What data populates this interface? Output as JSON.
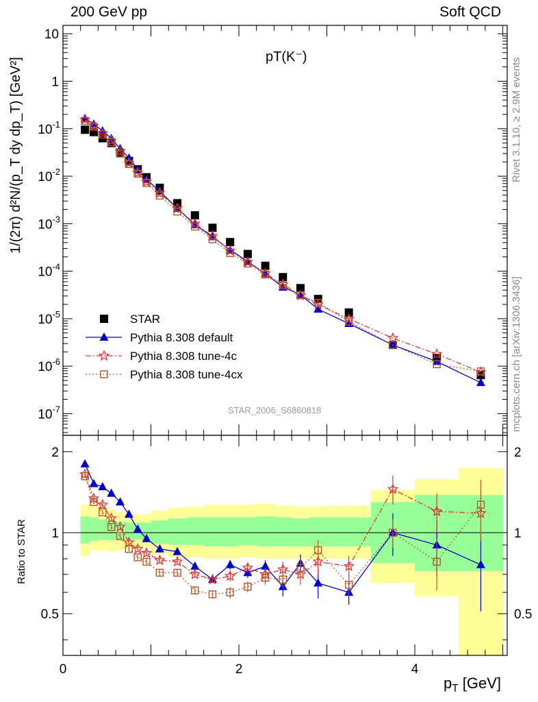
{
  "header": {
    "left": "200 GeV pp",
    "right": "Soft QCD",
    "plot_title": "pT(K⁻)",
    "watermark": "STAR_2006_S6860818"
  },
  "side_text": {
    "rivet": "Rivet 3.1.10, ≥ 2.9M events",
    "source": "mcplots.cern.ch [arXiv:1306.3436]"
  },
  "axes": {
    "upper_ylabel": "1/(2π) d²N/(p_T dy dp_T) [GeV²]",
    "lower_ylabel": "Ratio to STAR",
    "xlabel_main": "p",
    "xlabel_sub": "T",
    "xlabel_unit": "[GeV]"
  },
  "legend": [
    {
      "label": "STAR",
      "style": "data",
      "color": "#000000"
    },
    {
      "label": "Pythia 8.308 default",
      "style": "triangle",
      "color": "#0000cc"
    },
    {
      "label": "Pythia 8.308 tune-4c",
      "style": "star",
      "color": "#e03333"
    },
    {
      "label": "Pythia 8.308 tune-4cx",
      "style": "square-open",
      "color": "#b5562a"
    }
  ],
  "chart_data": [
    {
      "type": "scatter",
      "name": "spectrum",
      "xlim": [
        0,
        5.05
      ],
      "ylim": [
        3.5e-08,
        15
      ],
      "yscale": "log",
      "x_ticks": [
        0,
        2,
        4
      ],
      "y_ticks": [
        "10^{-7}",
        "10^{-6}",
        "10^{-5}",
        "10^{-4}",
        "10^{-3}",
        "10^{-2}",
        "10^{-1}",
        "1",
        "10"
      ],
      "series": [
        {
          "name": "STAR",
          "x": [
            0.25,
            0.35,
            0.45,
            0.55,
            0.65,
            0.75,
            0.85,
            0.95,
            1.1,
            1.3,
            1.5,
            1.7,
            1.9,
            2.1,
            2.3,
            2.5,
            2.7,
            2.9,
            3.25,
            3.75,
            4.25,
            4.75
          ],
          "y": [
            0.095,
            0.085,
            0.063,
            0.05,
            0.031,
            0.021,
            0.014,
            0.0095,
            0.0057,
            0.0027,
            0.0015,
            0.00082,
            0.00041,
            0.00023,
            0.00013,
            7.5e-05,
            4.4e-05,
            2.6e-05,
            1.35e-05,
            2.8e-06,
            1.5e-06,
            6.5e-07
          ]
        },
        {
          "name": "Pythia 8.308 default",
          "x": [
            0.25,
            0.35,
            0.45,
            0.55,
            0.65,
            0.75,
            0.85,
            0.95,
            1.1,
            1.3,
            1.5,
            1.7,
            1.9,
            2.1,
            2.3,
            2.5,
            2.7,
            2.9,
            3.25,
            3.75,
            4.25,
            4.75
          ],
          "y": [
            0.165,
            0.125,
            0.09,
            0.062,
            0.038,
            0.024,
            0.014,
            0.0085,
            0.0048,
            0.0021,
            0.00095,
            0.00053,
            0.00028,
            0.00016,
            8.8e-05,
            4.6e-05,
            3.2e-05,
            1.58e-05,
            7.9e-06,
            2.8e-06,
            1.25e-06,
            4.5e-07
          ]
        },
        {
          "name": "Pythia 8.308 tune-4c",
          "x": [
            0.25,
            0.35,
            0.45,
            0.55,
            0.65,
            0.75,
            0.85,
            0.95,
            1.1,
            1.3,
            1.5,
            1.7,
            1.9,
            2.1,
            2.3,
            2.5,
            2.7,
            2.9,
            3.25,
            3.75,
            4.25,
            4.75
          ],
          "y": [
            0.155,
            0.113,
            0.08,
            0.056,
            0.033,
            0.019,
            0.0118,
            0.0076,
            0.0044,
            0.0021,
            0.001,
            0.00055,
            0.00027,
            0.000155,
            9e-05,
            5.3e-05,
            3.1e-05,
            2e-05,
            9.9e-06,
            3.9e-06,
            1.8e-06,
            7.5e-07
          ]
        },
        {
          "name": "Pythia 8.308 tune-4cx",
          "x": [
            0.25,
            0.35,
            0.45,
            0.55,
            0.65,
            0.75,
            0.85,
            0.95,
            1.1,
            1.3,
            1.5,
            1.7,
            1.9,
            2.1,
            2.3,
            2.5,
            2.7,
            2.9,
            3.25,
            3.75,
            4.25,
            4.75
          ],
          "y": [
            0.145,
            0.11,
            0.075,
            0.052,
            0.03,
            0.018,
            0.0113,
            0.0072,
            0.0039,
            0.0018,
            0.00087,
            0.00047,
            0.00024,
            0.000145,
            8.5e-05,
            5e-05,
            3.1e-05,
            2.15e-05,
            8.7e-06,
            2.8e-06,
            1.1e-06,
            7.8e-07
          ]
        }
      ]
    },
    {
      "type": "scatter",
      "name": "ratio",
      "xlim": [
        0,
        5.05
      ],
      "ylim": [
        0.35,
        2.3
      ],
      "yscale": "log",
      "x_ticks": [
        0,
        2,
        4
      ],
      "y_ticks": [
        0.5,
        1,
        2
      ],
      "bands": {
        "x_edges": [
          0.2,
          0.3,
          0.4,
          0.5,
          0.6,
          0.7,
          0.8,
          0.9,
          1.0,
          1.2,
          1.4,
          1.6,
          1.8,
          2.0,
          2.2,
          2.4,
          2.6,
          2.8,
          3.0,
          3.5,
          4.0,
          4.5,
          5.0
        ],
        "yellow_low": [
          0.82,
          0.86,
          0.86,
          0.85,
          0.86,
          0.87,
          0.87,
          0.88,
          0.83,
          0.81,
          0.81,
          0.8,
          0.8,
          0.81,
          0.8,
          0.8,
          0.8,
          0.8,
          0.8,
          0.65,
          0.58,
          0.35
        ],
        "yellow_high": [
          1.27,
          1.27,
          1.24,
          1.22,
          1.19,
          1.17,
          1.17,
          1.17,
          1.21,
          1.24,
          1.25,
          1.27,
          1.27,
          1.27,
          1.28,
          1.26,
          1.25,
          1.25,
          1.26,
          1.44,
          1.58,
          1.74
        ],
        "green_low": [
          0.91,
          0.93,
          0.94,
          0.94,
          0.94,
          0.94,
          0.94,
          0.94,
          0.91,
          0.9,
          0.9,
          0.89,
          0.89,
          0.9,
          0.89,
          0.89,
          0.89,
          0.89,
          0.89,
          0.77,
          0.72,
          0.72
        ],
        "green_high": [
          1.15,
          1.14,
          1.12,
          1.11,
          1.1,
          1.09,
          1.09,
          1.09,
          1.11,
          1.13,
          1.14,
          1.14,
          1.14,
          1.14,
          1.15,
          1.14,
          1.13,
          1.14,
          1.14,
          1.3,
          1.38,
          1.38
        ]
      },
      "series": [
        {
          "name": "Pythia 8.308 default",
          "x": [
            0.25,
            0.35,
            0.45,
            0.55,
            0.65,
            0.75,
            0.85,
            0.95,
            1.1,
            1.3,
            1.5,
            1.7,
            1.9,
            2.1,
            2.3,
            2.5,
            2.7,
            2.9,
            3.25,
            3.75,
            4.25,
            4.75
          ],
          "y": [
            1.8,
            1.52,
            1.48,
            1.4,
            1.3,
            1.17,
            1.03,
            0.95,
            0.87,
            0.85,
            0.75,
            0.67,
            0.76,
            0.71,
            0.75,
            0.63,
            0.77,
            0.65,
            0.6,
            1.0,
            0.9,
            0.76
          ],
          "err": [
            0.02,
            0.02,
            0.02,
            0.02,
            0.02,
            0.02,
            0.02,
            0.02,
            0.02,
            0.02,
            0.02,
            0.02,
            0.03,
            0.03,
            0.04,
            0.05,
            0.06,
            0.08,
            0.06,
            0.18,
            0.2,
            0.25
          ]
        },
        {
          "name": "Pythia 8.308 tune-4c",
          "x": [
            0.25,
            0.35,
            0.45,
            0.55,
            0.65,
            0.75,
            0.85,
            0.95,
            1.1,
            1.3,
            1.5,
            1.7,
            1.9,
            2.1,
            2.3,
            2.5,
            2.7,
            2.9,
            3.25,
            3.75,
            4.25,
            4.75
          ],
          "y": [
            1.65,
            1.34,
            1.27,
            1.13,
            1.05,
            0.92,
            0.87,
            0.84,
            0.79,
            0.78,
            0.7,
            0.67,
            0.69,
            0.74,
            0.7,
            0.73,
            0.7,
            0.78,
            0.75,
            1.45,
            1.2,
            1.18
          ],
          "err": [
            0.02,
            0.02,
            0.02,
            0.02,
            0.02,
            0.02,
            0.02,
            0.02,
            0.02,
            0.02,
            0.02,
            0.02,
            0.03,
            0.03,
            0.04,
            0.05,
            0.06,
            0.08,
            0.07,
            0.18,
            0.2,
            0.25
          ]
        },
        {
          "name": "Pythia 8.308 tune-4cx",
          "x": [
            0.25,
            0.35,
            0.45,
            0.55,
            0.65,
            0.75,
            0.85,
            0.95,
            1.1,
            1.3,
            1.5,
            1.7,
            1.9,
            2.1,
            2.3,
            2.5,
            2.7,
            2.9,
            3.25,
            3.75,
            4.25,
            4.75
          ],
          "y": [
            1.62,
            1.3,
            1.19,
            1.05,
            0.97,
            0.87,
            0.81,
            0.78,
            0.71,
            0.71,
            0.61,
            0.59,
            0.6,
            0.63,
            0.68,
            0.67,
            0.74,
            0.86,
            0.64,
            1.0,
            0.78,
            1.27
          ],
          "err": [
            0.02,
            0.02,
            0.02,
            0.02,
            0.02,
            0.02,
            0.02,
            0.02,
            0.02,
            0.02,
            0.02,
            0.02,
            0.03,
            0.03,
            0.04,
            0.05,
            0.06,
            0.08,
            0.06,
            0.12,
            0.17,
            0.3
          ]
        }
      ]
    }
  ]
}
